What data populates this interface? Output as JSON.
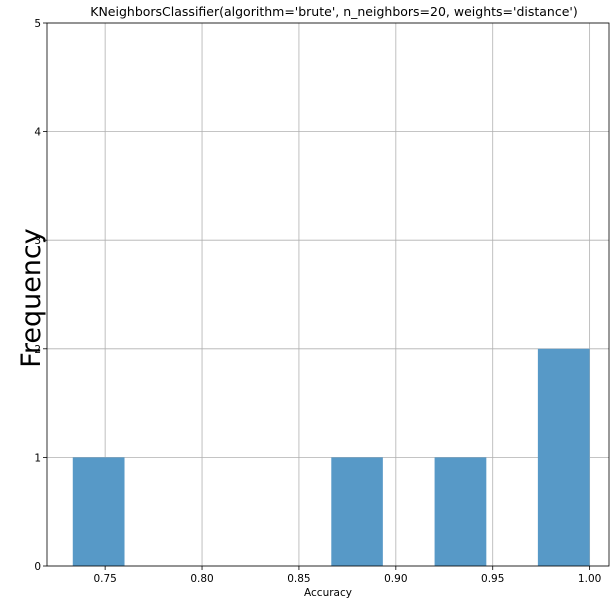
{
  "chart_data": {
    "type": "bar",
    "title": "KNeighborsClassifier(algorithm='brute', n_neighbors=20, weights='distance')",
    "xlabel": "Accuracy",
    "ylabel": "Frequency",
    "xlim": [
      0.72,
      1.01
    ],
    "ylim": [
      0,
      5
    ],
    "xticks": [
      "0.75",
      "0.80",
      "0.85",
      "0.90",
      "0.95",
      "1.00"
    ],
    "yticks": [
      "0",
      "1",
      "2",
      "3",
      "4",
      "5"
    ],
    "grid": true,
    "bar_color": "#5799c7",
    "bins": [
      {
        "x0": 0.7333,
        "x1": 0.76,
        "count": 1
      },
      {
        "x0": 0.76,
        "x1": 0.7867,
        "count": 0
      },
      {
        "x0": 0.7867,
        "x1": 0.8133,
        "count": 0
      },
      {
        "x0": 0.8133,
        "x1": 0.84,
        "count": 0
      },
      {
        "x0": 0.84,
        "x1": 0.8667,
        "count": 0
      },
      {
        "x0": 0.8667,
        "x1": 0.8933,
        "count": 1
      },
      {
        "x0": 0.8933,
        "x1": 0.92,
        "count": 0
      },
      {
        "x0": 0.92,
        "x1": 0.9467,
        "count": 1
      },
      {
        "x0": 0.9467,
        "x1": 0.9733,
        "count": 0
      },
      {
        "x0": 0.9733,
        "x1": 1.0,
        "count": 2
      }
    ]
  }
}
